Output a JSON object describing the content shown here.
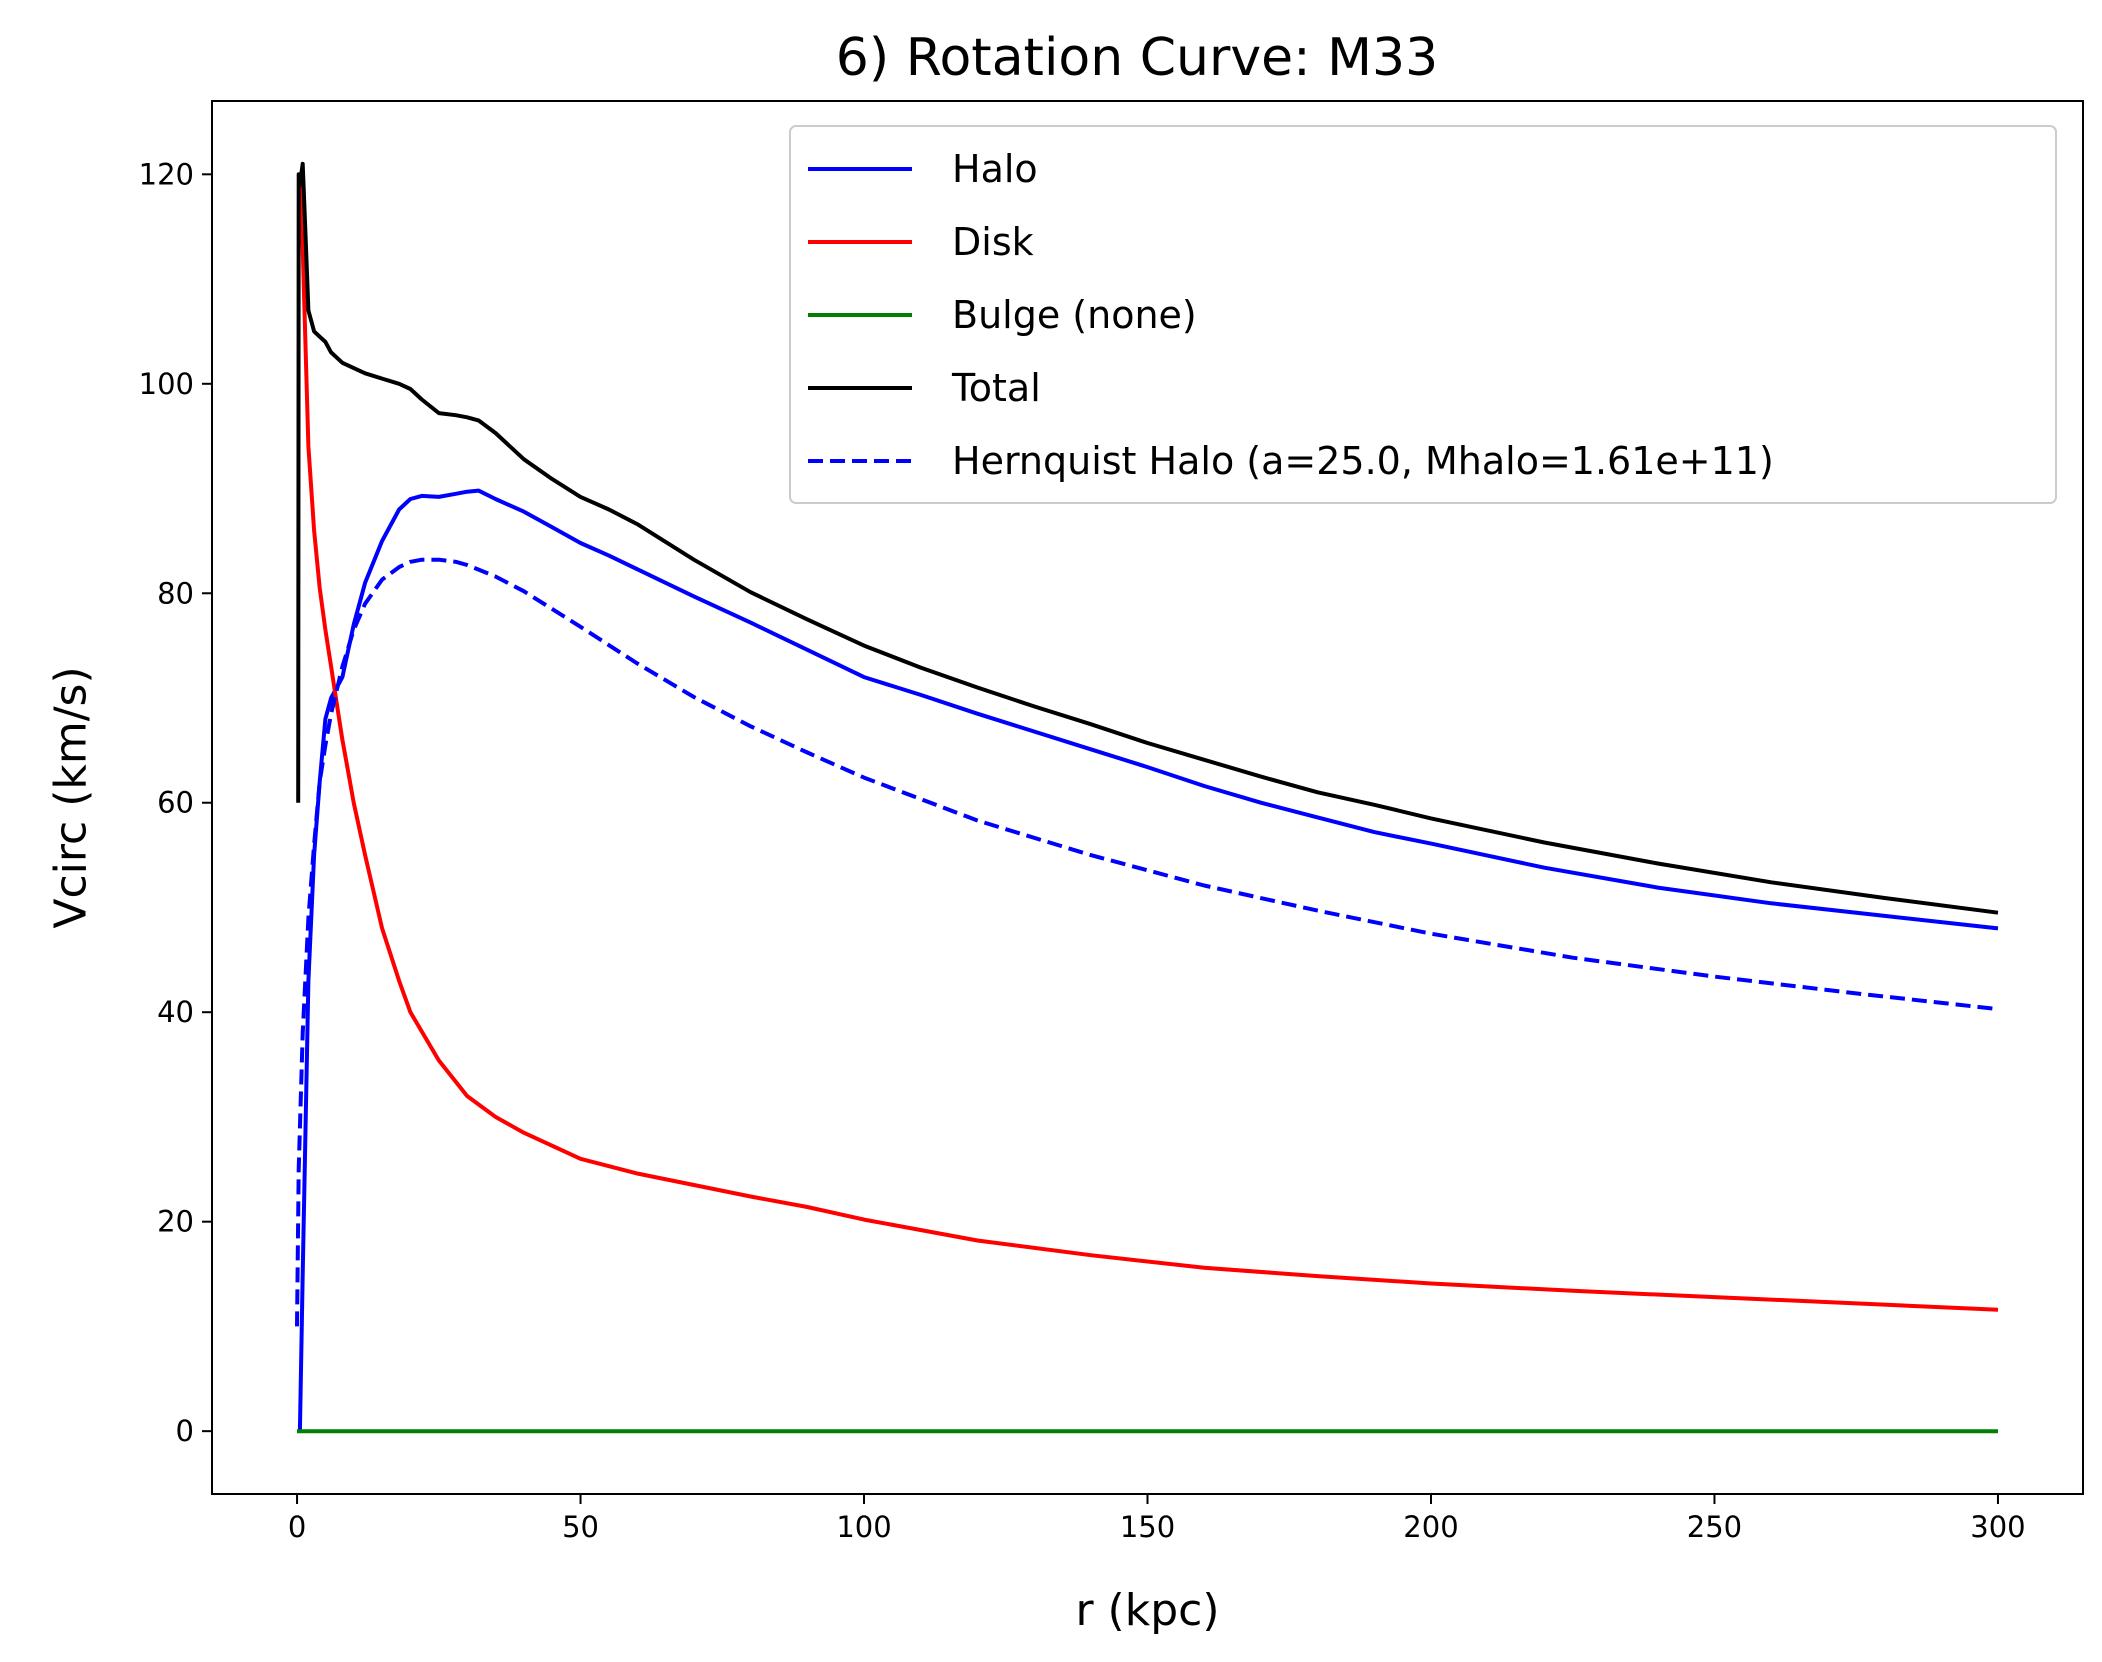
{
  "chart_data": {
    "type": "line",
    "title": "6) Rotation Curve: M33",
    "xlabel": "r (kpc)",
    "ylabel": "Vcirc (km/s)",
    "xlim": [
      -15,
      315
    ],
    "ylim": [
      -6,
      127
    ],
    "x_ticks": [
      0,
      50,
      100,
      150,
      200,
      250,
      300
    ],
    "y_ticks": [
      0,
      20,
      40,
      60,
      80,
      100,
      120
    ],
    "grid": false,
    "legend_position": "upper-right",
    "series": [
      {
        "name": "Halo",
        "color": "#0000ff",
        "dash": "solid",
        "x": [
          0.5,
          1,
          2,
          3,
          4,
          5,
          6,
          8,
          10,
          12,
          15,
          18,
          20,
          22,
          25,
          28,
          30,
          32,
          35,
          40,
          45,
          50,
          55,
          60,
          70,
          80,
          90,
          100,
          110,
          120,
          130,
          140,
          150,
          160,
          170,
          180,
          190,
          200,
          220,
          240,
          260,
          280,
          300
        ],
        "y": [
          0,
          15,
          43,
          55,
          62,
          68,
          70,
          72,
          77,
          81,
          85,
          88,
          89,
          89.3,
          89.2,
          89.5,
          89.7,
          89.8,
          89,
          87.8,
          86.3,
          84.8,
          83.6,
          82.3,
          79.7,
          77.2,
          74.6,
          72,
          70.3,
          68.5,
          66.8,
          65.1,
          63.4,
          61.6,
          60,
          58.6,
          57.2,
          56.1,
          53.8,
          51.9,
          50.4,
          49.2,
          48
        ]
      },
      {
        "name": "Disk",
        "color": "#ff0000",
        "dash": "solid",
        "x": [
          0.5,
          1,
          2,
          3,
          4,
          5,
          6,
          7,
          8,
          9,
          10,
          12,
          15,
          18,
          20,
          25,
          30,
          35,
          40,
          50,
          60,
          70,
          80,
          90,
          100,
          120,
          140,
          160,
          180,
          200,
          225,
          250,
          275,
          300
        ],
        "y": [
          120,
          113,
          94,
          86,
          80.5,
          76.5,
          73,
          69.5,
          66,
          63,
          60,
          55,
          48,
          43,
          40,
          35.4,
          32,
          30,
          28.5,
          26,
          24.6,
          23.5,
          22.4,
          21.4,
          20.2,
          18.2,
          16.8,
          15.6,
          14.8,
          14.1,
          13.4,
          12.8,
          12.2,
          11.6
        ]
      },
      {
        "name": "Bulge (none)",
        "color": "#008000",
        "dash": "solid",
        "x": [
          0,
          300
        ],
        "y": [
          0,
          0
        ]
      },
      {
        "name": "Total",
        "color": "#000000",
        "dash": "solid",
        "x": [
          0.2,
          0.3,
          0.5,
          1,
          1.5,
          2,
          3,
          4,
          5,
          6,
          8,
          10,
          12,
          15,
          18,
          20,
          22,
          25,
          28,
          30,
          32,
          35,
          40,
          45,
          50,
          55,
          60,
          70,
          80,
          90,
          100,
          110,
          120,
          130,
          140,
          150,
          160,
          170,
          180,
          190,
          200,
          220,
          240,
          260,
          280,
          300
        ],
        "y": [
          60,
          120,
          119,
          121,
          114,
          107,
          105,
          104.5,
          104,
          103,
          102,
          101.5,
          101,
          100.5,
          100,
          99.5,
          98.5,
          97.2,
          97,
          96.8,
          96.5,
          95.3,
          92.8,
          90.9,
          89.2,
          88,
          86.6,
          83.2,
          80.1,
          77.5,
          75,
          72.9,
          71,
          69.2,
          67.5,
          65.7,
          64.1,
          62.5,
          61,
          59.8,
          58.5,
          56.2,
          54.2,
          52.4,
          50.9,
          49.5
        ]
      },
      {
        "name": "Hernquist Halo (a=25.0, Mhalo=1.61e+11)",
        "color": "#0000ff",
        "dash": "dashed",
        "x": [
          0,
          0.3,
          1,
          2,
          3,
          4,
          5,
          6,
          8,
          10,
          12,
          15,
          18,
          20,
          22,
          25,
          28,
          30,
          35,
          40,
          50,
          60,
          70,
          80,
          90,
          100,
          120,
          140,
          160,
          180,
          200,
          225,
          250,
          275,
          300
        ],
        "y": [
          10,
          25,
          38,
          49,
          56,
          62,
          65.5,
          68.5,
          73,
          76.5,
          79,
          81.3,
          82.5,
          83,
          83.2,
          83.2,
          83,
          82.7,
          81.6,
          80.2,
          76.8,
          73.3,
          70.1,
          67.3,
          64.8,
          62.4,
          58.3,
          55,
          52.1,
          49.7,
          47.5,
          45.2,
          43.4,
          41.8,
          40.3
        ]
      }
    ]
  }
}
